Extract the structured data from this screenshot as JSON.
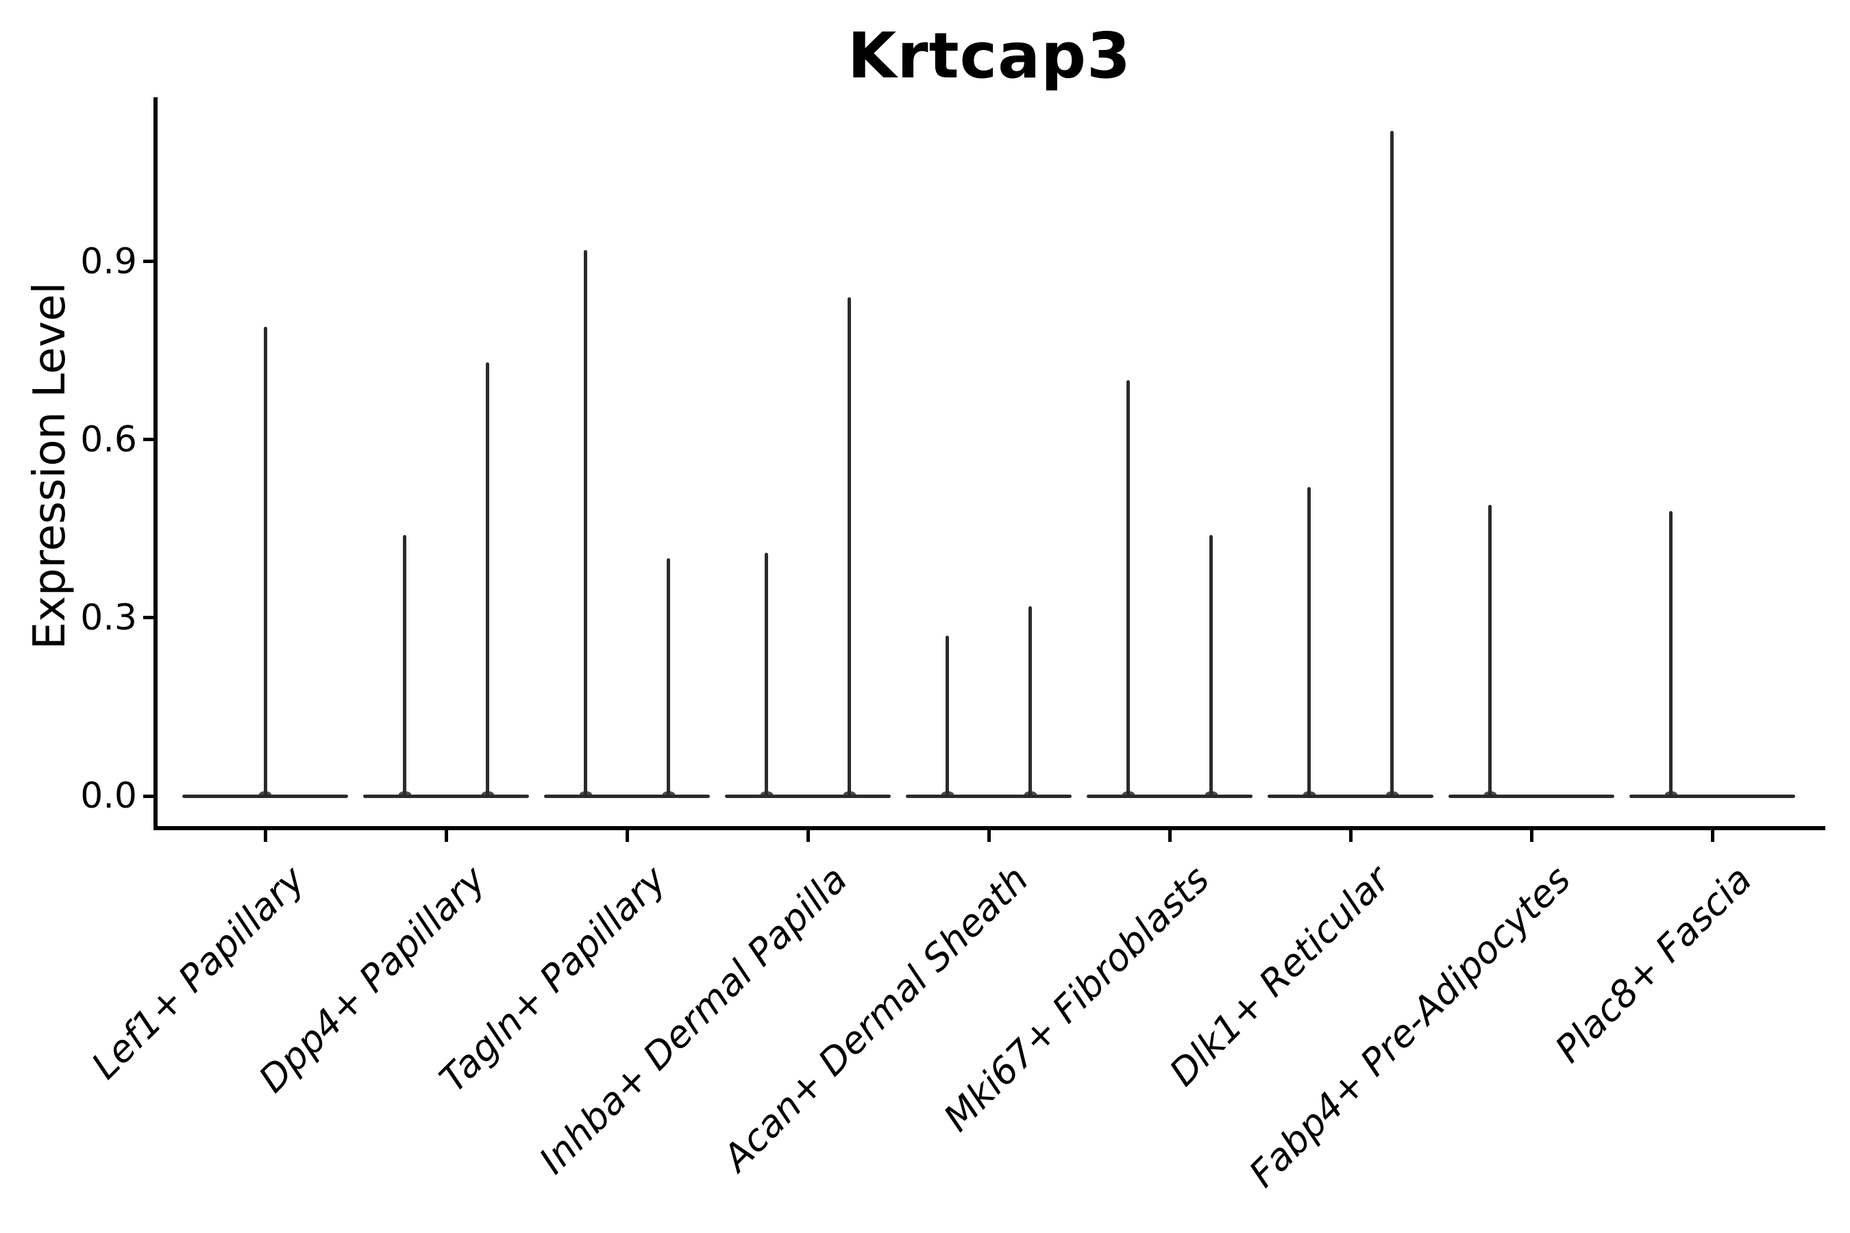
{
  "chart_data": {
    "type": "violin",
    "title": "Krtcap3",
    "xlabel": "",
    "ylabel": "Expression Level",
    "ytick_values": [
      0.0,
      0.3,
      0.6,
      0.9
    ],
    "ytick_labels": [
      "0.0",
      "0.3",
      "0.6",
      "0.9"
    ],
    "ylim": [
      -0.054,
      1.176
    ],
    "grid": false,
    "legend": "none",
    "categories": [
      "Lef1+ Papillary",
      "Dpp4+ Papillary",
      "Tagln+ Papillary",
      "Inhba+ Dermal Papilla",
      "Acan+ Dermal Sheath",
      "Mki67+ Fibroblasts",
      "Dlk1+ Reticular",
      "Fabp4+ Pre-Adipocytes",
      "Plac8+ Fascia"
    ],
    "violins": [
      {
        "category": "Lef1+ Papillary",
        "spikes": [
          {
            "slot": "center",
            "peak": 0.79
          }
        ]
      },
      {
        "category": "Dpp4+ Papillary",
        "spikes": [
          {
            "slot": "left",
            "peak": 0.44
          },
          {
            "slot": "right",
            "peak": 0.73
          }
        ]
      },
      {
        "category": "Tagln+ Papillary",
        "spikes": [
          {
            "slot": "left",
            "peak": 0.92
          },
          {
            "slot": "right",
            "peak": 0.4
          }
        ]
      },
      {
        "category": "Inhba+ Dermal Papilla",
        "spikes": [
          {
            "slot": "left",
            "peak": 0.41
          },
          {
            "slot": "right",
            "peak": 0.84
          }
        ]
      },
      {
        "category": "Acan+ Dermal Sheath",
        "spikes": [
          {
            "slot": "left",
            "peak": 0.27
          },
          {
            "slot": "right",
            "peak": 0.32
          }
        ]
      },
      {
        "category": "Mki67+ Fibroblasts",
        "spikes": [
          {
            "slot": "left",
            "peak": 0.7
          },
          {
            "slot": "right",
            "peak": 0.44
          }
        ]
      },
      {
        "category": "Dlk1+ Reticular",
        "spikes": [
          {
            "slot": "left",
            "peak": 0.52
          },
          {
            "slot": "right",
            "peak": 1.12
          }
        ]
      },
      {
        "category": "Fabp4+ Pre-Adipocytes",
        "spikes": [
          {
            "slot": "left",
            "peak": 0.49
          }
        ]
      },
      {
        "category": "Plac8+ Fascia",
        "spikes": [
          {
            "slot": "left",
            "peak": 0.48
          }
        ]
      }
    ],
    "baseline_value": 0.0,
    "colors": {
      "violin_stroke": "#2b2b2b",
      "axis": "#000000",
      "text": "#000000",
      "background": "#ffffff"
    }
  }
}
